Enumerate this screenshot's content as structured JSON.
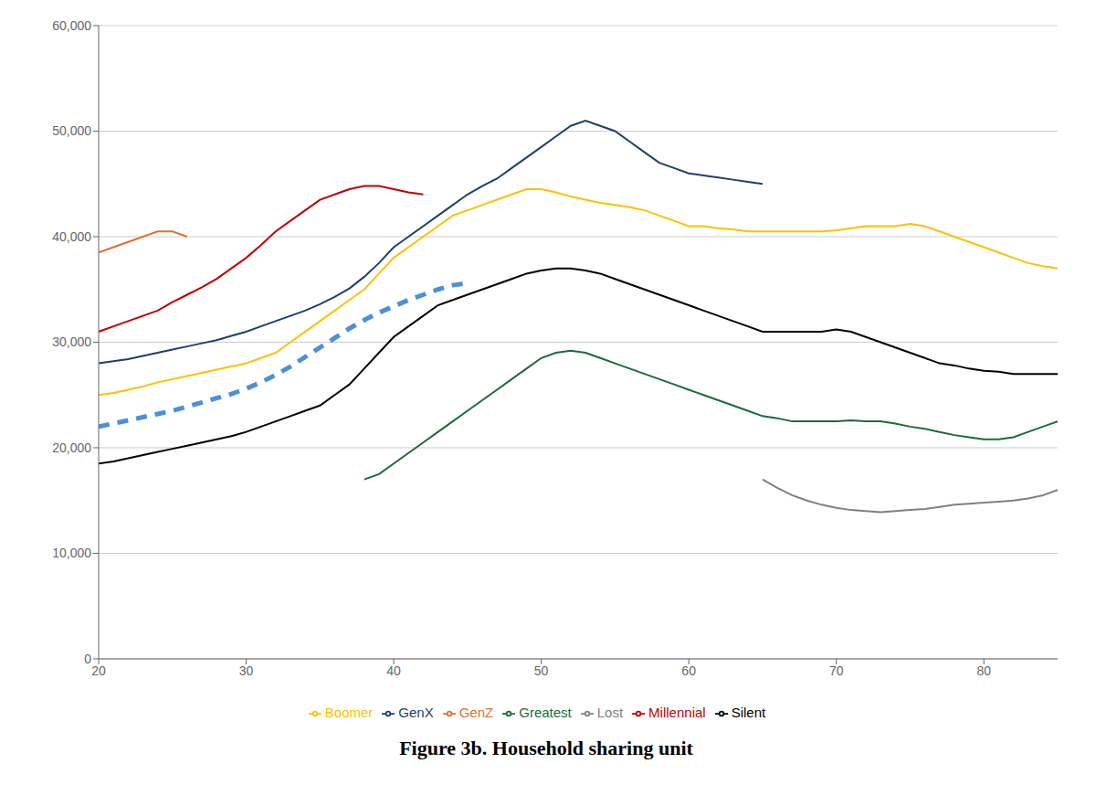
{
  "chart_data": {
    "type": "line",
    "title": "Figure 3b. Household sharing unit",
    "xlim": [
      20,
      85
    ],
    "ylim": [
      0,
      60000
    ],
    "xticks": [
      20,
      30,
      40,
      50,
      60,
      70,
      80
    ],
    "yticks": [
      0,
      {
        "value": 10000,
        "label": "10,000"
      },
      {
        "value": 20000,
        "label": "20,000"
      },
      {
        "value": 30000,
        "label": "30,000"
      },
      {
        "value": 40000,
        "label": "40,000"
      },
      {
        "value": 50000,
        "label": "50,000"
      },
      {
        "value": 60000,
        "label": "60,000"
      }
    ],
    "grid": true,
    "series": [
      {
        "name": "Lost",
        "color": "#808080",
        "x": [
          65,
          66,
          67,
          68,
          69,
          70,
          71,
          72,
          73,
          74,
          75,
          76,
          77,
          78,
          79,
          80,
          81,
          82,
          83,
          84,
          85
        ],
        "values": [
          17000,
          16200,
          15500,
          15000,
          14600,
          14300,
          14100,
          14000,
          13900,
          14000,
          14100,
          14200,
          14400,
          14600,
          14700,
          14800,
          14900,
          15000,
          15200,
          15500,
          16000
        ]
      },
      {
        "name": "Greatest",
        "color": "#1a6b3c",
        "x": [
          38,
          39,
          40,
          41,
          42,
          43,
          44,
          45,
          46,
          47,
          48,
          49,
          50,
          51,
          52,
          53,
          54,
          55,
          56,
          57,
          58,
          59,
          60,
          61,
          62,
          63,
          64,
          65,
          66,
          67,
          68,
          69,
          70,
          71,
          72,
          73,
          74,
          75,
          76,
          77,
          78,
          79,
          80,
          81,
          82,
          83,
          84,
          85
        ],
        "values": [
          17000,
          17500,
          18500,
          19500,
          20500,
          21500,
          22500,
          23500,
          24500,
          25500,
          26500,
          27500,
          28500,
          29000,
          29200,
          29000,
          28500,
          28000,
          27500,
          27000,
          26500,
          26000,
          25500,
          25000,
          24500,
          24000,
          23500,
          23000,
          22800,
          22500,
          22500,
          22500,
          22500,
          22600,
          22500,
          22500,
          22300,
          22000,
          21800,
          21500,
          21200,
          21000,
          20800,
          20800,
          21000,
          21500,
          22000,
          22500
        ]
      },
      {
        "name": "Silent",
        "color": "#000000",
        "x": [
          20,
          21,
          22,
          23,
          24,
          25,
          26,
          27,
          28,
          29,
          30,
          31,
          32,
          33,
          34,
          35,
          36,
          37,
          38,
          39,
          40,
          41,
          42,
          43,
          44,
          45,
          46,
          47,
          48,
          49,
          50,
          51,
          52,
          53,
          54,
          55,
          56,
          57,
          58,
          59,
          60,
          61,
          62,
          63,
          64,
          65,
          66,
          67,
          68,
          69,
          70,
          71,
          72,
          73,
          74,
          75,
          76,
          77,
          78,
          79,
          80,
          81,
          82,
          83,
          84,
          85
        ],
        "values": [
          18500,
          18700,
          19000,
          19300,
          19600,
          19900,
          20200,
          20500,
          20800,
          21100,
          21500,
          22000,
          22500,
          23000,
          23500,
          24000,
          25000,
          26000,
          27500,
          29000,
          30500,
          31500,
          32500,
          33500,
          34000,
          34500,
          35000,
          35500,
          36000,
          36500,
          36800,
          37000,
          37000,
          36800,
          36500,
          36000,
          35500,
          35000,
          34500,
          34000,
          33500,
          33000,
          32500,
          32000,
          31500,
          31000,
          31000,
          31000,
          31000,
          31000,
          31200,
          31000,
          30500,
          30000,
          29500,
          29000,
          28500,
          28000,
          27800,
          27500,
          27300,
          27200,
          27000,
          27000,
          27000,
          27000
        ]
      },
      {
        "name": "Boomer",
        "color": "#ffc000",
        "x": [
          20,
          21,
          22,
          23,
          24,
          25,
          26,
          27,
          28,
          29,
          30,
          31,
          32,
          33,
          34,
          35,
          36,
          37,
          38,
          39,
          40,
          41,
          42,
          43,
          44,
          45,
          46,
          47,
          48,
          49,
          50,
          51,
          52,
          53,
          54,
          55,
          56,
          57,
          58,
          59,
          60,
          61,
          62,
          63,
          64,
          65,
          66,
          67,
          68,
          69,
          70,
          71,
          72,
          73,
          74,
          75,
          76,
          77,
          78,
          79,
          80,
          81,
          82,
          83,
          84,
          85
        ],
        "values": [
          25000,
          25200,
          25500,
          25800,
          26200,
          26500,
          26800,
          27100,
          27400,
          27700,
          28000,
          28500,
          29000,
          30000,
          31000,
          32000,
          33000,
          34000,
          35000,
          36500,
          38000,
          39000,
          40000,
          41000,
          42000,
          42500,
          43000,
          43500,
          44000,
          44500,
          44500,
          44200,
          43800,
          43500,
          43200,
          43000,
          42800,
          42500,
          42000,
          41500,
          41000,
          41000,
          40800,
          40700,
          40500,
          40500,
          40500,
          40500,
          40500,
          40500,
          40600,
          40800,
          41000,
          41000,
          41000,
          41200,
          41000,
          40500,
          40000,
          39500,
          39000,
          38500,
          38000,
          37500,
          37200,
          37000
        ]
      },
      {
        "name": "GenX",
        "color": "#1f3f6e",
        "x": [
          20,
          21,
          22,
          23,
          24,
          25,
          26,
          27,
          28,
          29,
          30,
          31,
          32,
          33,
          34,
          35,
          36,
          37,
          38,
          39,
          40,
          41,
          42,
          43,
          44,
          45,
          46,
          47,
          48,
          49,
          50,
          51,
          52,
          53,
          54,
          55,
          56,
          57,
          58,
          59,
          60,
          61,
          62,
          63,
          64,
          65
        ],
        "values": [
          28000,
          28200,
          28400,
          28700,
          29000,
          29300,
          29600,
          29900,
          30200,
          30600,
          31000,
          31500,
          32000,
          32500,
          33000,
          33600,
          34300,
          35100,
          36200,
          37500,
          39000,
          40000,
          41000,
          42000,
          43000,
          44000,
          44800,
          45500,
          46500,
          47500,
          48500,
          49500,
          50500,
          51000,
          50500,
          50000,
          49000,
          48000,
          47000,
          46500,
          46000,
          45800,
          45600,
          45400,
          45200,
          45000
        ]
      },
      {
        "name": "Millennial",
        "color": "#c00000",
        "x": [
          20,
          21,
          22,
          23,
          24,
          25,
          26,
          27,
          28,
          29,
          30,
          31,
          32,
          33,
          34,
          35,
          36,
          37,
          38,
          39,
          40,
          41,
          42
        ],
        "values": [
          31000,
          31500,
          32000,
          32500,
          33000,
          33800,
          34500,
          35200,
          36000,
          37000,
          38000,
          39200,
          40500,
          41500,
          42500,
          43500,
          44000,
          44500,
          44800,
          44800,
          44500,
          44200,
          44000
        ]
      },
      {
        "name": "GenZ",
        "color": "#e07030",
        "x": [
          20,
          21,
          22,
          23,
          24,
          25,
          26
        ],
        "values": [
          38500,
          39000,
          39500,
          40000,
          40500,
          40500,
          40000
        ]
      },
      {
        "color": "#4a90d9",
        "line_style": "dashed",
        "x": [
          20,
          21,
          22,
          23,
          24,
          25,
          26,
          27,
          28,
          29,
          30,
          31,
          32,
          33,
          34,
          35,
          36,
          37,
          38,
          39,
          40,
          41,
          42,
          43,
          44,
          45
        ],
        "values": [
          22000,
          22300,
          22600,
          22900,
          23200,
          23500,
          23900,
          24300,
          24700,
          25100,
          25600,
          26200,
          26900,
          27700,
          28600,
          29500,
          30400,
          31300,
          32100,
          32800,
          33400,
          34000,
          34500,
          35000,
          35400,
          35600
        ]
      }
    ]
  }
}
